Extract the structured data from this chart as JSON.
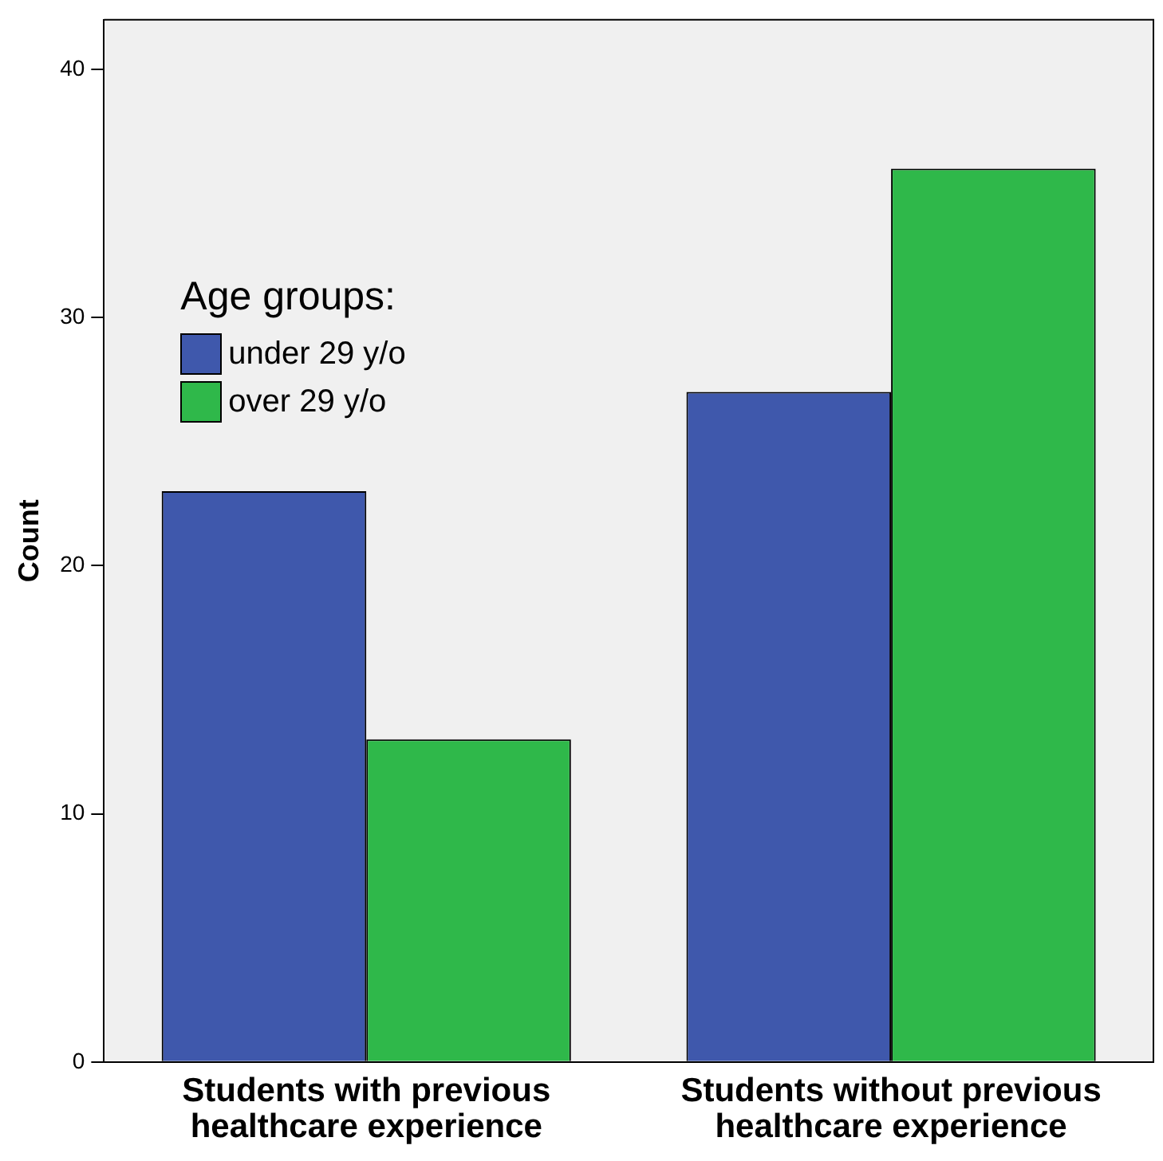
{
  "chart_data": {
    "type": "bar",
    "ylabel": "Count",
    "legend_title": "Age groups:",
    "categories": [
      "Students with previous healthcare experience",
      "Students without previous healthcare experience"
    ],
    "series": [
      {
        "name": "under 29 y/o",
        "color": "#3f58ac",
        "values": [
          23,
          27
        ]
      },
      {
        "name": "over 29 y/o",
        "color": "#2fb84a",
        "values": [
          13,
          36
        ]
      }
    ],
    "ylim": [
      0,
      42
    ],
    "yticks": [
      0,
      10,
      20,
      30,
      40
    ],
    "grid": false,
    "legend": "left"
  }
}
